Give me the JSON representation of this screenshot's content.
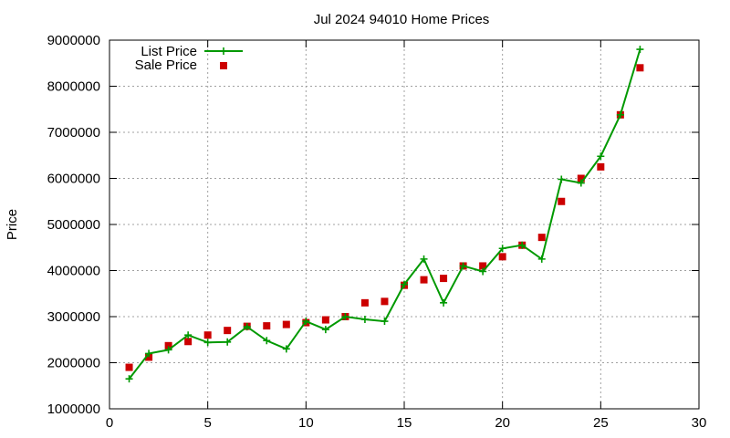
{
  "chart_data": {
    "type": "line",
    "title": "Jul 2024 94010 Home Prices",
    "xlabel": "",
    "ylabel": "Price",
    "xlim": [
      0,
      30
    ],
    "ylim": [
      1000000,
      9000000
    ],
    "xticks": [
      0,
      5,
      10,
      15,
      20,
      25,
      30
    ],
    "yticks": [
      1000000,
      2000000,
      3000000,
      4000000,
      5000000,
      6000000,
      7000000,
      8000000,
      9000000
    ],
    "grid": true,
    "legend_position": "top-left",
    "series": [
      {
        "name": "List Price",
        "style": "line-with-plus-markers",
        "color": "#009900",
        "x": [
          1,
          2,
          3,
          4,
          5,
          6,
          7,
          8,
          9,
          10,
          11,
          12,
          13,
          14,
          15,
          16,
          17,
          18,
          19,
          20,
          21,
          22,
          23,
          24,
          25,
          26,
          27
        ],
        "values": [
          1650000,
          2200000,
          2280000,
          2600000,
          2440000,
          2450000,
          2780000,
          2480000,
          2300000,
          2900000,
          2720000,
          3000000,
          2940000,
          2900000,
          3700000,
          4250000,
          3300000,
          4100000,
          3980000,
          4480000,
          4550000,
          4250000,
          5980000,
          5900000,
          6480000,
          7380000,
          8800000
        ]
      },
      {
        "name": "Sale Price",
        "style": "square-markers",
        "color": "#cc0000",
        "x": [
          1,
          2,
          3,
          4,
          5,
          6,
          7,
          8,
          9,
          10,
          11,
          12,
          13,
          14,
          15,
          16,
          17,
          18,
          19,
          20,
          21,
          22,
          23,
          24,
          25,
          26,
          27
        ],
        "values": [
          1900000,
          2120000,
          2370000,
          2460000,
          2600000,
          2700000,
          2790000,
          2800000,
          2830000,
          2870000,
          2930000,
          3000000,
          3300000,
          3330000,
          3680000,
          3800000,
          3830000,
          4100000,
          4100000,
          4300000,
          4550000,
          4720000,
          5500000,
          6000000,
          6250000,
          7380000,
          8400000
        ]
      }
    ]
  }
}
